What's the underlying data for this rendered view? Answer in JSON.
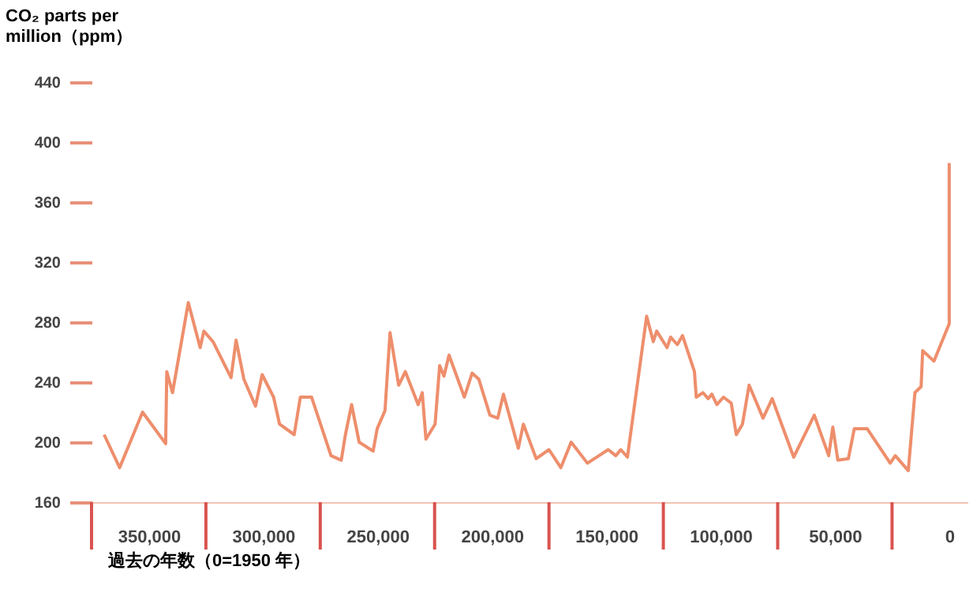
{
  "chart_data": {
    "type": "line",
    "ylabel": "CO₂ parts per\nmillion（ppm）",
    "xlabel": "過去の年数（0=1950 年）",
    "x": [
      369500,
      362700,
      352700,
      342600,
      342100,
      339600,
      332700,
      327500,
      325900,
      321900,
      314000,
      311800,
      308400,
      303300,
      300400,
      295400,
      292800,
      286400,
      283700,
      278800,
      270300,
      265800,
      264000,
      261300,
      258000,
      251900,
      250100,
      246700,
      244500,
      240700,
      237800,
      232200,
      230400,
      228800,
      224800,
      222800,
      220900,
      218700,
      212000,
      208600,
      205700,
      200800,
      197400,
      194900,
      188400,
      186200,
      180600,
      175000,
      169800,
      165300,
      158200,
      149100,
      145800,
      143600,
      140700,
      132300,
      129400,
      127900,
      123400,
      121800,
      118900,
      116600,
      111400,
      110600,
      107700,
      105400,
      103800,
      101600,
      98700,
      95300,
      93100,
      90400,
      87500,
      81400,
      77400,
      68000,
      59000,
      52700,
      50900,
      48700,
      44100,
      41500,
      35900,
      25800,
      23600,
      17900,
      15000,
      12300,
      11600,
      6700,
      0,
      0
    ],
    "series": [
      {
        "color": "#ee8e6c",
        "values": [
          205,
          183,
          220,
          199,
          247,
          233,
          293,
          263,
          274,
          267,
          243,
          268,
          242,
          224,
          245,
          230,
          212,
          205,
          230,
          230,
          191,
          188,
          205,
          225,
          200,
          194,
          209,
          221,
          273,
          238,
          247,
          225,
          233,
          202,
          212,
          251,
          244,
          258,
          230,
          246,
          242,
          218,
          216,
          232,
          196,
          212,
          189,
          195,
          183,
          200,
          186,
          195,
          191,
          195,
          190,
          284,
          267,
          274,
          263,
          270,
          265,
          271,
          247,
          230,
          233,
          229,
          232,
          225,
          230,
          226,
          205,
          212,
          238,
          216,
          229,
          190,
          218,
          191,
          210,
          188,
          189,
          209,
          209,
          186,
          191,
          181,
          233,
          237,
          261,
          254,
          279,
          386
        ]
      }
    ],
    "xlim": [
      375000,
      -8000
    ],
    "xticks": [
      {
        "value": 350000,
        "label": "350,000"
      },
      {
        "value": 300000,
        "label": "300,000"
      },
      {
        "value": 250000,
        "label": "250,000"
      },
      {
        "value": 200000,
        "label": "200,000"
      },
      {
        "value": 150000,
        "label": "150,000"
      },
      {
        "value": 100000,
        "label": "100,000"
      },
      {
        "value": 50000,
        "label": "50,000"
      },
      0
    ],
    "ylim": [
      160,
      440
    ],
    "yticks": [
      160,
      200,
      240,
      280,
      320,
      360,
      400,
      440
    ],
    "grid": false,
    "legend": false,
    "marker": "none",
    "line_style": "solid"
  }
}
